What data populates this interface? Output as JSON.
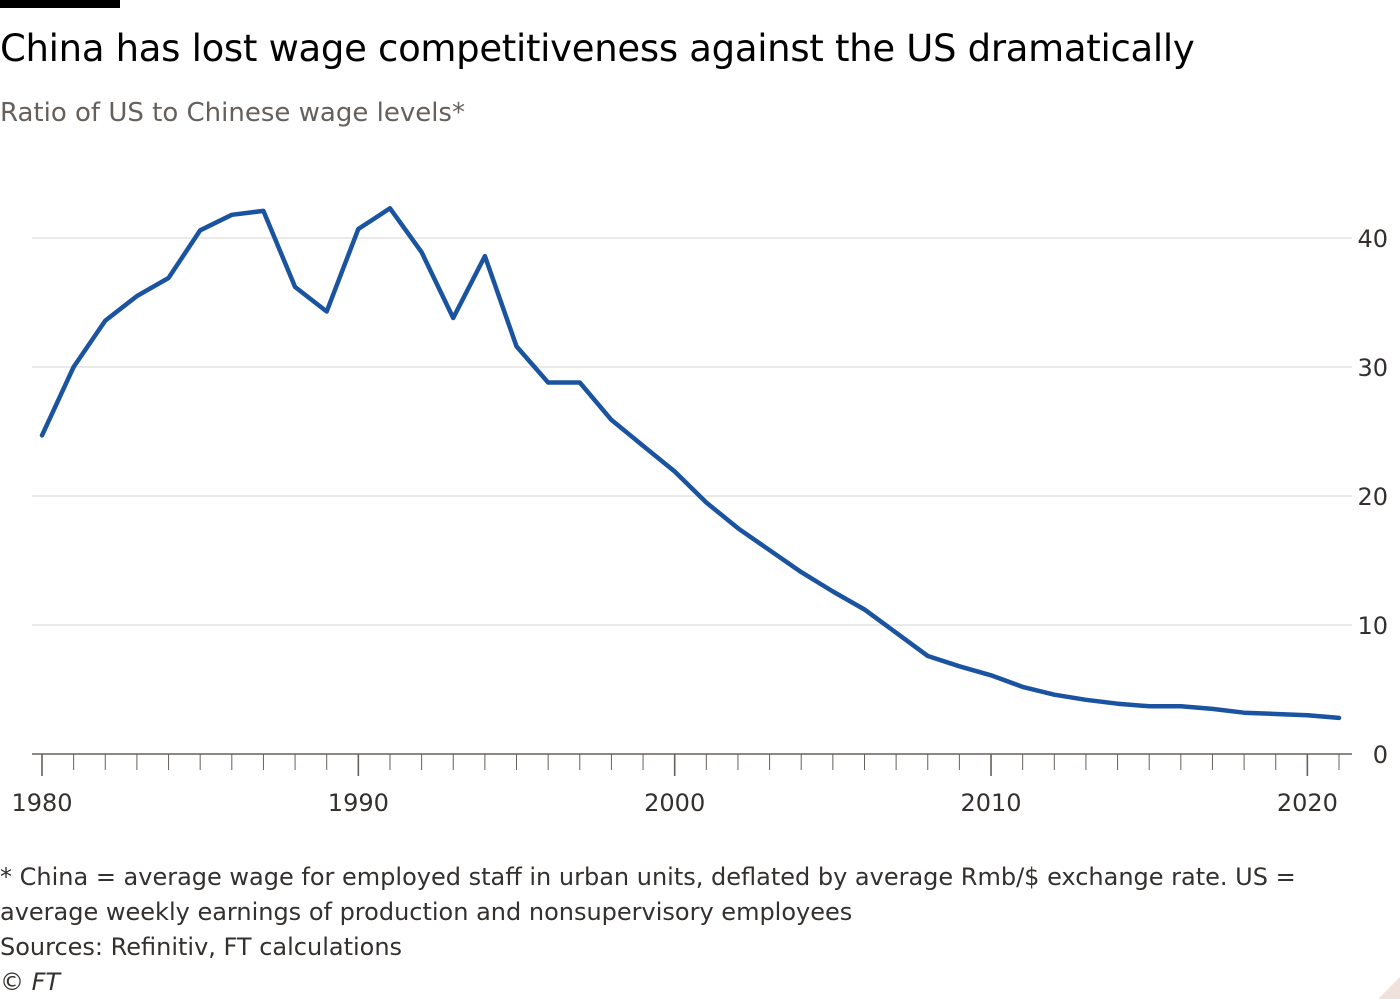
{
  "header": {
    "title": "China has lost wage competitiveness against the US dramatically",
    "subtitle": "Ratio of US to Chinese wage levels*"
  },
  "footer": {
    "note_line1": "* China = average wage for employed staff in urban units, deflated by average Rmb/$ exchange rate. US =",
    "note_line2": "average weekly earnings of production and nonsupervisory employees",
    "sources": "Sources: Refinitiv, FT calculations",
    "copyright": "© FT"
  },
  "colors": {
    "line": "#1a53a0",
    "grid": "#e6e3e0",
    "axis": "#66605c",
    "tick_text": "#33302e"
  },
  "chart_data": {
    "type": "line",
    "title": "China has lost wage competitiveness against the US dramatically",
    "subtitle": "Ratio of US to Chinese wage levels*",
    "xlabel": "",
    "ylabel": "",
    "xlim": [
      1980,
      2021
    ],
    "ylim": [
      0,
      42
    ],
    "x_ticks": [
      1980,
      1990,
      2000,
      2010,
      2020
    ],
    "x_tick_labels": [
      "1980",
      "1990",
      "2000",
      "2010",
      "2020"
    ],
    "y_ticks": [
      0,
      10,
      20,
      30,
      40
    ],
    "y_tick_labels": [
      "0",
      "10",
      "20",
      "30",
      "40"
    ],
    "y_axis_side": "right",
    "grid": true,
    "series": [
      {
        "name": "Ratio of US to Chinese wage levels",
        "x": [
          1980,
          1981,
          1982,
          1983,
          1984,
          1985,
          1986,
          1987,
          1988,
          1989,
          1990,
          1991,
          1992,
          1993,
          1994,
          1995,
          1996,
          1997,
          1998,
          1999,
          2000,
          2001,
          2002,
          2003,
          2004,
          2005,
          2006,
          2007,
          2008,
          2009,
          2010,
          2011,
          2012,
          2013,
          2014,
          2015,
          2016,
          2017,
          2018,
          2019,
          2020,
          2021
        ],
        "values": [
          24.7,
          30.0,
          33.6,
          35.5,
          36.9,
          40.6,
          41.8,
          42.1,
          36.2,
          34.3,
          40.7,
          42.3,
          38.9,
          33.8,
          38.6,
          31.6,
          28.8,
          28.8,
          25.9,
          23.9,
          21.9,
          19.5,
          17.5,
          15.8,
          14.1,
          12.6,
          11.2,
          9.4,
          7.6,
          6.8,
          6.1,
          5.2,
          4.6,
          4.2,
          3.9,
          3.7,
          3.7,
          3.5,
          3.2,
          3.1,
          3.0,
          2.8
        ]
      }
    ]
  }
}
